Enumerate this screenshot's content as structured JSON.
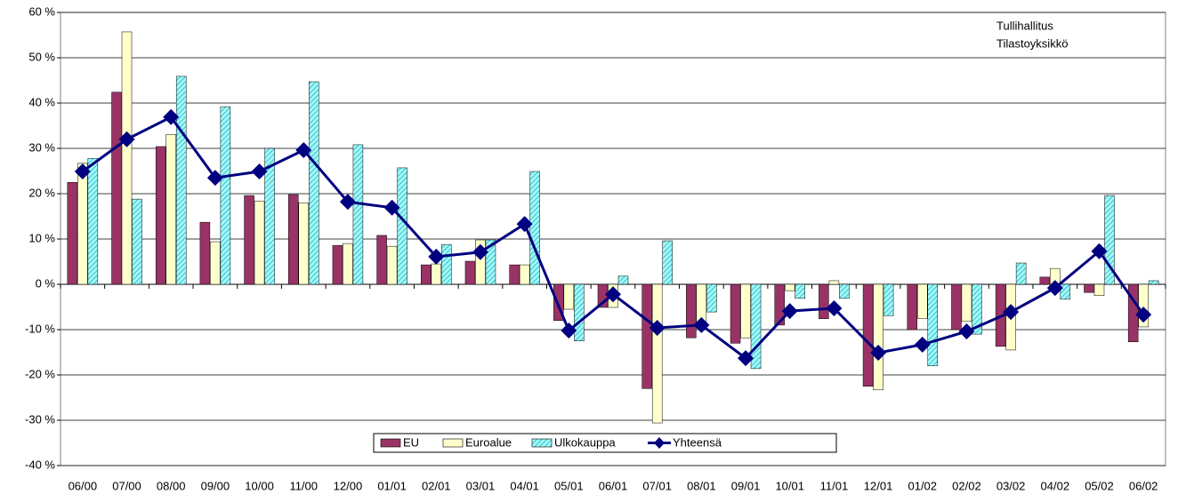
{
  "chart_data": {
    "type": "bar_line",
    "annotations": [
      "Tullihallitus",
      "Tilastoyksikkö"
    ],
    "categories": [
      "06/00",
      "07/00",
      "08/00",
      "09/00",
      "10/00",
      "11/00",
      "12/00",
      "01/01",
      "02/01",
      "03/01",
      "04/01",
      "05/01",
      "06/01",
      "07/01",
      "08/01",
      "09/01",
      "10/01",
      "11/01",
      "12/01",
      "01/02",
      "02/02",
      "03/02",
      "04/02",
      "05/02",
      "06/02"
    ],
    "series": [
      {
        "name": "EU",
        "type": "bar",
        "color": "#993366",
        "values": [
          22.5,
          42.4,
          30.4,
          13.7,
          19.6,
          19.8,
          8.6,
          10.8,
          4.3,
          5.1,
          4.3,
          -8,
          -5.1,
          -23,
          -11.8,
          -13,
          -9,
          -7.6,
          -22.5,
          -10,
          -10,
          -13.7,
          1.6,
          -1.8,
          -12.7
        ]
      },
      {
        "name": "Euroalue",
        "type": "bar",
        "color": "#ffffcc",
        "values": [
          26.7,
          55.7,
          33.1,
          9.4,
          18.4,
          18,
          9,
          8.4,
          4.5,
          9.8,
          4.3,
          -5.5,
          -5.1,
          -30.6,
          -9,
          -11.8,
          -1.4,
          0.8,
          -23.3,
          -7.5,
          -8.2,
          -14.5,
          3.5,
          -2.5,
          -9.4
        ]
      },
      {
        "name": "Ulkokauppa",
        "type": "bar",
        "color": "#99ffff",
        "hatch": true,
        "values": [
          27.8,
          18.8,
          45.9,
          39.2,
          30,
          44.7,
          30.8,
          25.7,
          8.8,
          9.8,
          24.9,
          -12.5,
          1.8,
          9.6,
          -6.1,
          -18.6,
          -3.1,
          -3.1,
          -6.9,
          -18,
          -11,
          4.7,
          -3.3,
          19.6,
          0.8
        ]
      },
      {
        "name": "Yhteensä",
        "type": "line",
        "color": "#000080",
        "values": [
          24.9,
          32,
          36.9,
          23.5,
          24.9,
          29.6,
          18.2,
          16.9,
          6.1,
          7.1,
          13.3,
          -10.2,
          -2.2,
          -9.6,
          -9,
          -16.3,
          -5.9,
          -5.3,
          -15.1,
          -13.3,
          -10.4,
          -6.1,
          -0.8,
          7.3,
          -6.7
        ]
      }
    ],
    "ylim": [
      -40,
      60
    ],
    "yticks": [
      {
        "value": -40,
        "label": "-40 %"
      },
      {
        "value": -30,
        "label": "-30 %"
      },
      {
        "value": -20,
        "label": "-20 %"
      },
      {
        "value": -10,
        "label": "-10 %"
      },
      {
        "value": 0,
        "label": "0 %"
      },
      {
        "value": 10,
        "label": "10 %"
      },
      {
        "value": 20,
        "label": "20 %"
      },
      {
        "value": 30,
        "label": "30 %"
      },
      {
        "value": 40,
        "label": "40 %"
      },
      {
        "value": 50,
        "label": "50 %"
      },
      {
        "value": 60,
        "label": "60 %"
      }
    ],
    "grid": true,
    "legend": "bottom"
  }
}
